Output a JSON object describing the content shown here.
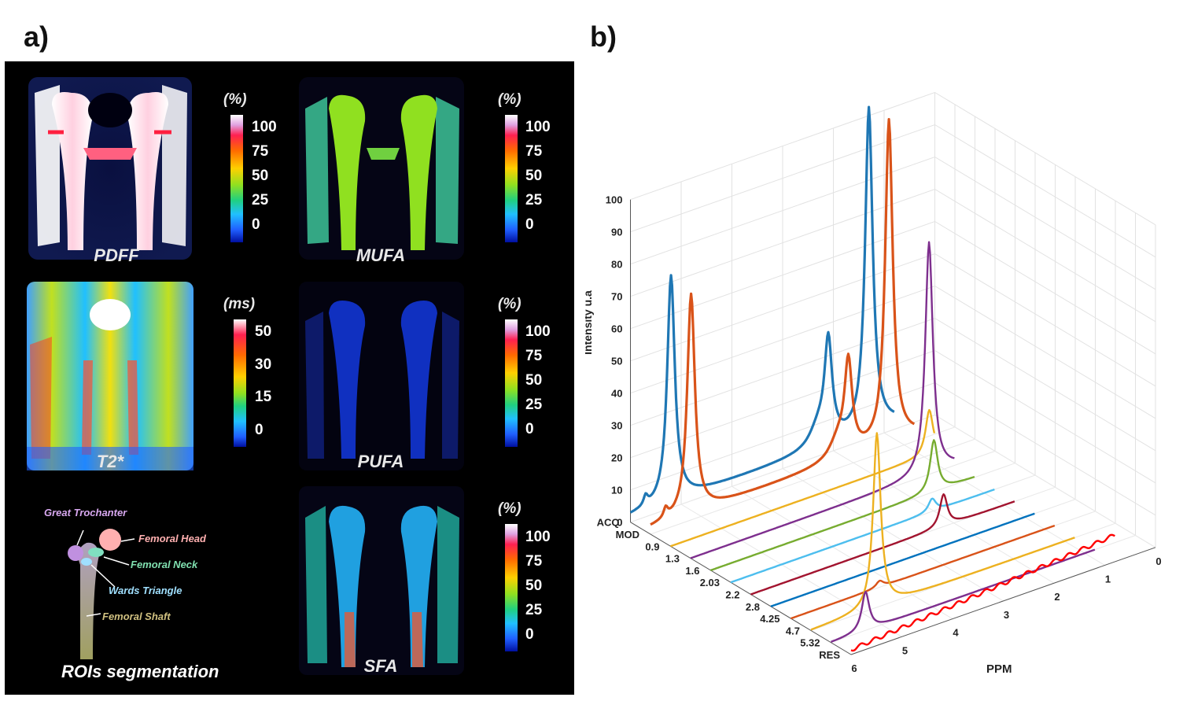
{
  "panel_a": {
    "label": "a)",
    "maps": [
      {
        "name": "PDFF",
        "unit": "(%)",
        "ticks": [
          "100",
          "75",
          "50",
          "25",
          "0"
        ]
      },
      {
        "name": "MUFA",
        "unit": "(%)",
        "ticks": [
          "100",
          "75",
          "50",
          "25",
          "0"
        ]
      },
      {
        "name": "T2*",
        "unit": "(ms)",
        "ticks": [
          "50",
          "30",
          "15",
          "0"
        ]
      },
      {
        "name": "PUFA",
        "unit": "(%)",
        "ticks": [
          "100",
          "75",
          "50",
          "25",
          "0"
        ]
      },
      {
        "name": "SFA",
        "unit": "(%)",
        "ticks": [
          "100",
          "75",
          "50",
          "25",
          "0"
        ]
      }
    ],
    "roi": {
      "title": "ROIs segmentation",
      "regions": [
        "Great Trochanter",
        "Femoral Head",
        "Femoral Neck",
        "Wards Triangle",
        "Femoral Shaft"
      ]
    }
  },
  "chart_data": {
    "type": "line",
    "label": "b)",
    "title": "",
    "zlabel": "Intensity u.a",
    "xlabel": "PPM",
    "zlim": [
      0,
      100
    ],
    "z_ticks": [
      0,
      10,
      20,
      30,
      40,
      50,
      60,
      70,
      80,
      90,
      100
    ],
    "ppm_ticks": [
      0,
      1,
      2,
      3,
      4,
      5,
      6
    ],
    "grid": true,
    "series": [
      {
        "name": "ACQ",
        "color": "#1f77b4",
        "peaks": [
          {
            "ppm": 5.2,
            "value": 70
          },
          {
            "ppm": 1.3,
            "value": 100
          },
          {
            "ppm": 2.1,
            "value": 31
          }
        ]
      },
      {
        "name": "MOD",
        "color": "#d95319",
        "peaks": [
          {
            "ppm": 5.2,
            "value": 68
          },
          {
            "ppm": 1.3,
            "value": 100
          },
          {
            "ppm": 2.1,
            "value": 28
          }
        ]
      },
      {
        "name": "0.9",
        "color": "#edb120",
        "peaks": [
          {
            "ppm": 0.9,
            "value": 14
          }
        ]
      },
      {
        "name": "1.3",
        "color": "#7e2f8e",
        "peaks": [
          {
            "ppm": 1.3,
            "value": 72
          }
        ]
      },
      {
        "name": "1.6",
        "color": "#77ac30",
        "peaks": [
          {
            "ppm": 1.6,
            "value": 16
          }
        ]
      },
      {
        "name": "2.03",
        "color": "#4dbeee",
        "peaks": [
          {
            "ppm": 2.03,
            "value": 4
          }
        ]
      },
      {
        "name": "2.2",
        "color": "#a2142f",
        "peaks": [
          {
            "ppm": 2.2,
            "value": 10
          }
        ]
      },
      {
        "name": "2.8",
        "color": "#0072bd",
        "peaks": [
          {
            "ppm": 2.8,
            "value": 0
          }
        ]
      },
      {
        "name": "4.25",
        "color": "#d95319",
        "peaks": [
          {
            "ppm": 4.25,
            "value": 2
          }
        ]
      },
      {
        "name": "4.7",
        "color": "#edb120",
        "peaks": [
          {
            "ppm": 4.7,
            "value": 54
          }
        ]
      },
      {
        "name": "5.32",
        "color": "#7e2f8e",
        "peaks": [
          {
            "ppm": 5.32,
            "value": 12
          }
        ]
      },
      {
        "name": "RES",
        "color": "#ff0000",
        "peaks": []
      }
    ]
  }
}
